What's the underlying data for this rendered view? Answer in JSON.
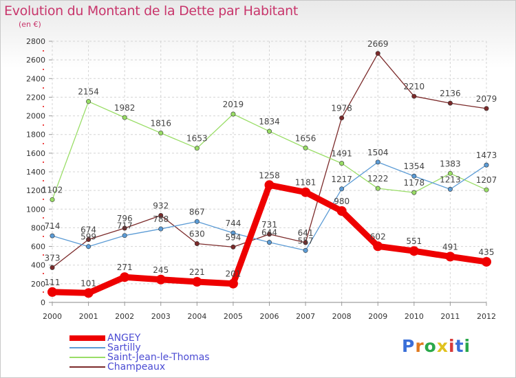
{
  "header": {
    "title": "Evolution du Montant de la Dette par Habitant",
    "subtitle": "(en €)"
  },
  "logo": {
    "letters": [
      "P",
      "r",
      "o",
      "x",
      "i",
      "t",
      "i"
    ],
    "colors": [
      "#3a6fd8",
      "#e07a1f",
      "#2aa84a",
      "#e0c21f",
      "#d83a3a",
      "#3a6fd8",
      "#2aa84a"
    ]
  },
  "chart_data": {
    "type": "line",
    "title": "Evolution du Montant de la Dette par Habitant",
    "ylabel": "(en €)",
    "xlabel": "",
    "ylim": [
      0,
      2800
    ],
    "yticks": [
      0,
      200,
      400,
      600,
      800,
      1000,
      1200,
      1400,
      1600,
      1800,
      2000,
      2200,
      2400,
      2600,
      2800
    ],
    "x": [
      "2000",
      "2001",
      "2002",
      "2003",
      "2004",
      "2005",
      "2006",
      "2007",
      "2008",
      "2009",
      "2010",
      "2011",
      "2012"
    ],
    "grid": true,
    "legend_position": "bottom-left",
    "series": [
      {
        "name": "ANGEY",
        "color": "#ee0000",
        "values": [
          111,
          101,
          271,
          245,
          221,
          201,
          1258,
          1181,
          980,
          602,
          551,
          491,
          435
        ]
      },
      {
        "name": "Sartilly",
        "color": "#5b9bd5",
        "values": [
          714,
          599,
          717,
          788,
          867,
          744,
          644,
          557,
          1217,
          1504,
          1354,
          1213,
          1473
        ]
      },
      {
        "name": "Saint-Jean-le-Thomas",
        "color": "#99dd66",
        "values": [
          1102,
          2154,
          1982,
          1816,
          1653,
          2019,
          1834,
          1656,
          1491,
          1222,
          1178,
          1383,
          1207
        ]
      },
      {
        "name": "Champeaux",
        "color": "#7b2a2a",
        "values": [
          373,
          674,
          796,
          932,
          630,
          594,
          731,
          641,
          1978,
          2669,
          2210,
          2136,
          2079
        ]
      }
    ]
  }
}
